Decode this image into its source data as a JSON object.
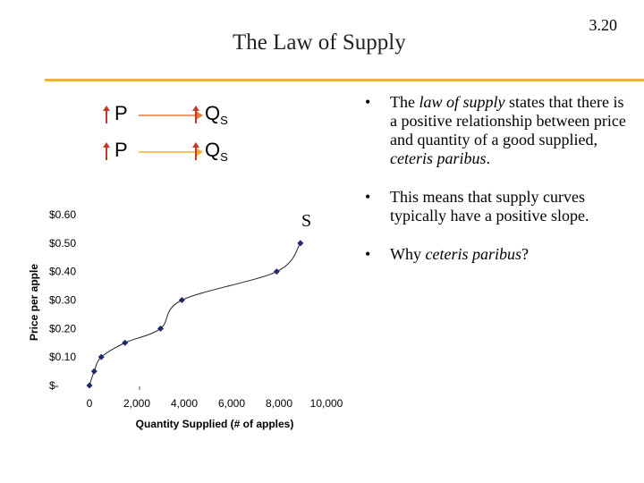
{
  "slide": {
    "number": "3.20",
    "title": "The Law of Supply"
  },
  "diagram": {
    "rows": [
      {
        "p_label": "P",
        "q_label": "Q",
        "q_sub": "S",
        "arrow_color": "#e07b39"
      },
      {
        "p_label": "P",
        "q_label": "Q",
        "q_sub": "S",
        "arrow_color": "#f0b030"
      }
    ],
    "up_arrow_color": "#c0392b"
  },
  "bullets": [
    {
      "before": "The ",
      "em": "law of supply",
      "after": " states that there is a positive relationship between price and quantity of a good supplied, ",
      "em2": "ceteris paribus",
      "end": "."
    },
    {
      "before": "This means that supply curves typically have a positive slope.",
      "em": "",
      "after": "",
      "em2": "",
      "end": ""
    },
    {
      "before": "Why ",
      "em": "ceteris paribus",
      "after": "?",
      "em2": "",
      "end": ""
    }
  ],
  "chart_data": {
    "type": "line",
    "curve_label": "S",
    "xlabel": "Quantity Supplied (# of apples)",
    "ylabel": "Price per apple",
    "xticks": [
      "0",
      "2,000",
      "4,000",
      "6,000",
      "8,000",
      "10,000"
    ],
    "yticks": [
      "$-",
      "$0.10",
      "$0.20",
      "$0.30",
      "$0.40",
      "$0.50",
      "$0.60"
    ],
    "xlim": [
      0,
      10000
    ],
    "ylim": [
      0,
      0.6
    ],
    "x": [
      0,
      200,
      500,
      1500,
      3000,
      3900,
      7900,
      8900
    ],
    "y": [
      0.0,
      0.05,
      0.1,
      0.15,
      0.2,
      0.3,
      0.4,
      0.5
    ],
    "marker_color": "#1f2a6e"
  }
}
